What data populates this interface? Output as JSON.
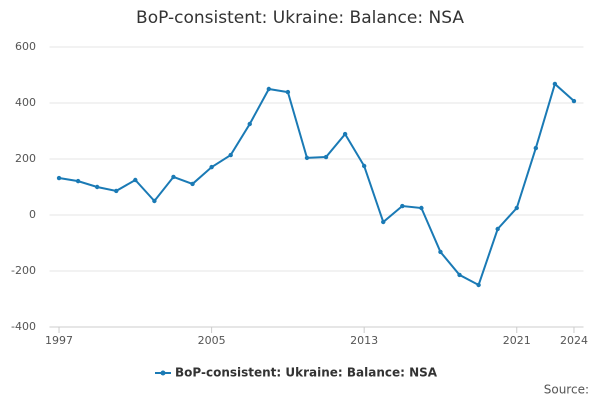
{
  "chart_data": {
    "type": "line",
    "title": "BoP-consistent: Ukraine: Balance: NSA",
    "x": [
      1997,
      1998,
      1999,
      2000,
      2001,
      2002,
      2003,
      2004,
      2005,
      2006,
      2007,
      2008,
      2009,
      2010,
      2011,
      2012,
      2013,
      2014,
      2015,
      2016,
      2017,
      2018,
      2019,
      2020,
      2021,
      2022,
      2023,
      2024
    ],
    "series": [
      {
        "name": "BoP-consistent: Ukraine: Balance: NSA",
        "color": "#1a7ab5",
        "values": [
          132,
          121,
          100,
          86,
          125,
          50,
          136,
          111,
          171,
          214,
          325,
          450,
          439,
          204,
          207,
          289,
          175,
          -25,
          32,
          25,
          -132,
          -214,
          -250,
          -50,
          25,
          239,
          468,
          407
        ]
      }
    ],
    "xlim": [
      1996.5,
      2024.5
    ],
    "xticks": [
      1997,
      2005,
      2013,
      2021,
      2024
    ],
    "ylim": [
      -400,
      600
    ],
    "yticks": [
      -400,
      -200,
      0,
      200,
      400,
      600
    ],
    "grid": true,
    "source": "Source:"
  }
}
